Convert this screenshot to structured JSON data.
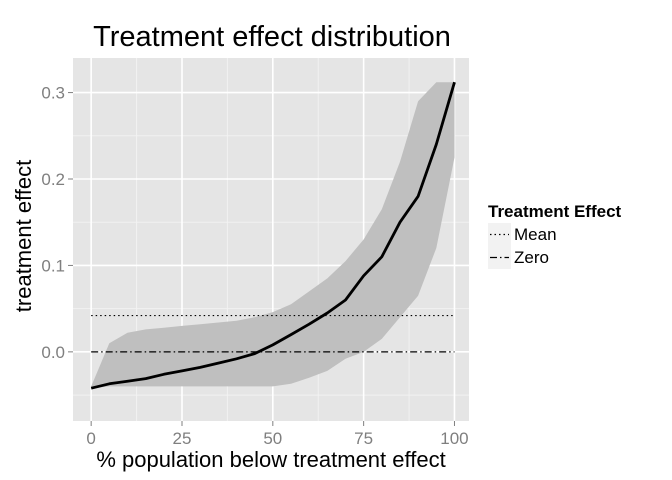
{
  "chart_data": {
    "type": "line",
    "title": "Treatment effect distribution",
    "xlabel": "% population below treatment effect",
    "ylabel": "treatment effect",
    "xlim": [
      -5,
      104
    ],
    "ylim": [
      -0.08,
      0.34
    ],
    "x_ticks": [
      0,
      25,
      50,
      75,
      100
    ],
    "x_tick_labels": [
      "0",
      "25",
      "50",
      "75",
      "100"
    ],
    "y_ticks": [
      0.0,
      0.1,
      0.2,
      0.3
    ],
    "y_tick_labels": [
      "0.0",
      "0.1",
      "0.2",
      "0.3"
    ],
    "grid": true,
    "legend": {
      "title": "Treatment Effect",
      "position": "right",
      "entries": [
        {
          "label": "Mean",
          "linetype": "dotted"
        },
        {
          "label": "Zero",
          "linetype": "dashdot"
        }
      ]
    },
    "reference_lines": [
      {
        "name": "Mean",
        "y": 0.042,
        "x_range": [
          0,
          100
        ],
        "linetype": "dotted"
      },
      {
        "name": "Zero",
        "y": 0.0,
        "x_range": [
          0,
          100
        ],
        "linetype": "dashdot"
      }
    ],
    "series": [
      {
        "x": [
          0,
          5,
          10,
          15,
          20,
          25,
          30,
          35,
          40,
          45,
          50,
          55,
          60,
          65,
          70,
          75,
          80,
          85,
          90,
          95,
          100
        ],
        "y": [
          -0.042,
          -0.037,
          -0.034,
          -0.031,
          -0.026,
          -0.022,
          -0.018,
          -0.013,
          -0.008,
          -0.002,
          0.008,
          0.02,
          0.032,
          0.045,
          0.06,
          0.088,
          0.11,
          0.15,
          0.18,
          0.24,
          0.312
        ],
        "lower": [
          -0.042,
          -0.04,
          -0.04,
          -0.04,
          -0.04,
          -0.04,
          -0.04,
          -0.04,
          -0.04,
          -0.04,
          -0.04,
          -0.037,
          -0.03,
          -0.022,
          -0.008,
          0.0,
          0.015,
          0.04,
          0.065,
          0.12,
          0.225
        ],
        "upper": [
          -0.04,
          0.01,
          0.022,
          0.026,
          0.028,
          0.03,
          0.032,
          0.034,
          0.036,
          0.04,
          0.046,
          0.055,
          0.07,
          0.085,
          0.105,
          0.13,
          0.165,
          0.22,
          0.29,
          0.312,
          0.312
        ]
      }
    ]
  },
  "colors": {
    "panel_background": "#e5e5e5",
    "grid_major": "#ffffff",
    "grid_minor": "#f2f2f2",
    "ribbon": "#bfbfbf",
    "line": "#000000",
    "legend_key": "#f2f2f2"
  }
}
